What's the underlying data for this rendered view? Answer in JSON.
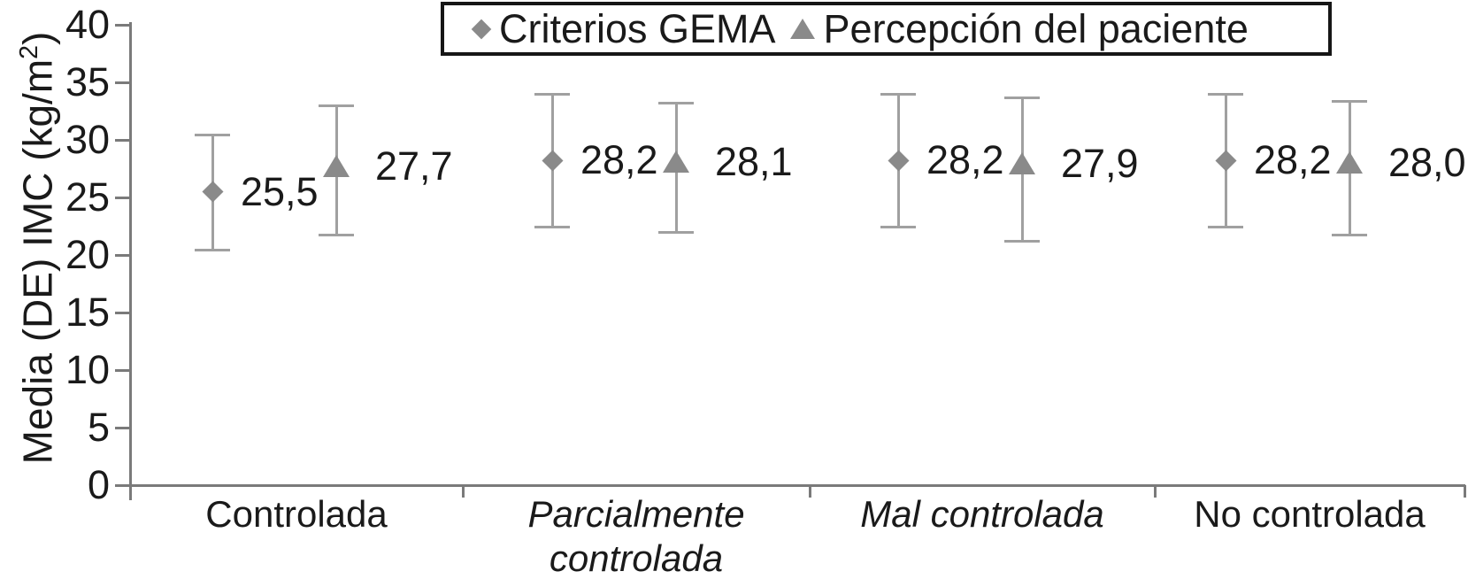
{
  "figure": {
    "background": "#ffffff",
    "text_color": "#1a1a1a",
    "axis_color": "#7a7a7a",
    "error_bar_color": "#a0a0a0",
    "marker_color": "#8a8a8a",
    "legend_border_color": "#161616"
  },
  "ylabel_parts": {
    "prefix": "Media (DE) IMC (kg/m",
    "sup": "2",
    "suffix": ")"
  },
  "chart_data": {
    "type": "scatter",
    "title": "",
    "ylabel": "Media (DE) IMC (kg/m²)",
    "xlabel": "",
    "ylim": [
      0,
      40
    ],
    "ytick_step": 5,
    "ytick_labels": [
      "0",
      "5",
      "10",
      "15",
      "20",
      "25",
      "30",
      "35",
      "40"
    ],
    "grid": false,
    "legend_position": "top",
    "error_bars": true,
    "categories": [
      {
        "lines": [
          "Controlada"
        ],
        "italic": false
      },
      {
        "lines": [
          "Parcialmente",
          "controlada"
        ],
        "italic": true
      },
      {
        "lines": [
          "Mal controlada"
        ],
        "italic": true
      },
      {
        "lines": [
          "No controlada"
        ],
        "italic": false
      }
    ],
    "series": [
      {
        "name": "Criterios GEMA",
        "marker": "diamond",
        "values": [
          25.5,
          28.2,
          28.2,
          28.2
        ],
        "value_labels": [
          "25,5",
          "28,2",
          "28,2",
          "28,2"
        ],
        "err_low": [
          20.5,
          22.5,
          22.5,
          22.5
        ],
        "err_high": [
          30.5,
          34.0,
          34.0,
          34.0
        ]
      },
      {
        "name": "Percepción del paciente",
        "marker": "triangle",
        "values": [
          27.7,
          28.1,
          27.9,
          28.0
        ],
        "value_labels": [
          "27,7",
          "28,1",
          "27,9",
          "28,0"
        ],
        "err_low": [
          21.8,
          22.0,
          21.2,
          21.8
        ],
        "err_high": [
          33.0,
          33.2,
          33.7,
          33.4
        ]
      }
    ]
  }
}
